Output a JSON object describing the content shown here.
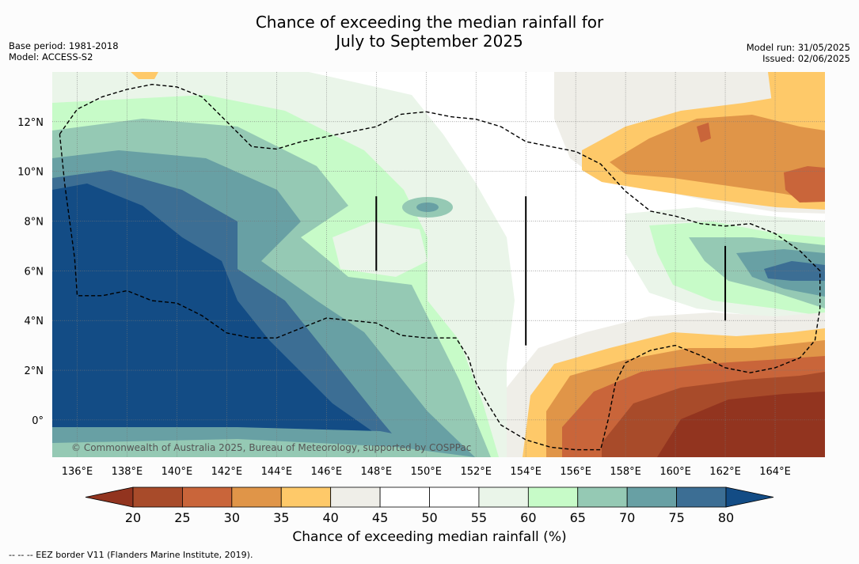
{
  "title": {
    "line1": "Chance of exceeding the median rainfall for",
    "line2": "July to September 2025"
  },
  "meta_left": {
    "base_period": "Base period: 1981-2018",
    "model": "Model: ACCESS-S2"
  },
  "meta_right": {
    "model_run": "Model run: 31/05/2025",
    "issued": "Issued: 02/06/2025"
  },
  "map": {
    "lon_range": [
      135,
      166
    ],
    "lat_range": [
      -1.5,
      14
    ],
    "x_ticks": [
      "136°E",
      "138°E",
      "140°E",
      "142°E",
      "144°E",
      "146°E",
      "148°E",
      "150°E",
      "152°E",
      "154°E",
      "156°E",
      "158°E",
      "160°E",
      "162°E",
      "164°E"
    ],
    "x_tick_values": [
      136,
      138,
      140,
      142,
      144,
      146,
      148,
      150,
      152,
      154,
      156,
      158,
      160,
      162,
      164
    ],
    "y_ticks": [
      "12°N",
      "10°N",
      "8°N",
      "6°N",
      "4°N",
      "2°N",
      "0°"
    ],
    "y_tick_values": [
      12,
      10,
      8,
      6,
      4,
      2,
      0
    ],
    "grid": true,
    "copyright": "© Commonwealth of Australia 2025, Bureau of Meteorology, supported by COSPPac",
    "eez_border": [
      [
        135.3,
        11.5
      ],
      [
        136,
        12.5
      ],
      [
        137,
        13
      ],
      [
        138,
        13.3
      ],
      [
        139,
        13.5
      ],
      [
        140,
        13.4
      ],
      [
        141,
        13
      ],
      [
        142,
        12
      ],
      [
        143,
        11
      ],
      [
        144,
        10.9
      ],
      [
        145,
        11.2
      ],
      [
        147,
        11.6
      ],
      [
        148,
        11.8
      ],
      [
        149,
        12.3
      ],
      [
        150,
        12.4
      ],
      [
        151,
        12.2
      ],
      [
        152,
        12.1
      ],
      [
        153,
        11.8
      ],
      [
        154,
        11.2
      ],
      [
        155,
        11
      ],
      [
        156,
        10.8
      ],
      [
        157,
        10.3
      ],
      [
        158,
        9.2
      ],
      [
        159,
        8.4
      ],
      [
        160,
        8.2
      ],
      [
        161,
        7.9
      ],
      [
        162,
        7.8
      ],
      [
        163,
        7.9
      ],
      [
        164,
        7.5
      ],
      [
        165,
        6.8
      ],
      [
        165.8,
        6
      ],
      [
        165.8,
        4.5
      ],
      [
        165.6,
        3.2
      ],
      [
        165,
        2.5
      ],
      [
        164,
        2.1
      ],
      [
        163,
        1.9
      ],
      [
        162,
        2.1
      ],
      [
        161,
        2.6
      ],
      [
        160,
        3
      ],
      [
        159,
        2.8
      ],
      [
        158,
        2.3
      ],
      [
        157.6,
        1.5
      ],
      [
        157.3,
        0
      ],
      [
        157,
        -1.2
      ],
      [
        156,
        -1.2
      ],
      [
        155,
        -1.1
      ],
      [
        154,
        -0.8
      ],
      [
        153,
        -0.2
      ],
      [
        152.5,
        0.6
      ],
      [
        152,
        1.5
      ],
      [
        151.7,
        2.5
      ],
      [
        151.2,
        3.3
      ],
      [
        150,
        3.3
      ],
      [
        149,
        3.4
      ],
      [
        148,
        3.9
      ],
      [
        147,
        4
      ],
      [
        146,
        4.1
      ],
      [
        145,
        3.7
      ],
      [
        144,
        3.3
      ],
      [
        143,
        3.3
      ],
      [
        142,
        3.5
      ],
      [
        141,
        4.2
      ],
      [
        140,
        4.7
      ],
      [
        139,
        4.8
      ],
      [
        138,
        5.2
      ],
      [
        137,
        5
      ],
      [
        136,
        5
      ],
      [
        135.9,
        6.5
      ],
      [
        135.7,
        8
      ],
      [
        135.5,
        9.5
      ],
      [
        135.3,
        11.5
      ]
    ],
    "vertical_lines": [
      [
        148,
        6,
        9
      ],
      [
        154,
        3,
        9
      ],
      [
        162,
        4,
        7
      ]
    ]
  },
  "colorbar": {
    "levels": [
      20,
      25,
      30,
      35,
      40,
      45,
      50,
      55,
      60,
      65,
      70,
      75,
      80
    ],
    "labels": [
      "20",
      "25",
      "30",
      "35",
      "40",
      "45",
      "50",
      "55",
      "60",
      "65",
      "70",
      "75",
      "80"
    ],
    "colors": [
      "#a84b2a",
      "#c9653a",
      "#e09548",
      "#fec969",
      "#efeee8",
      "#ffffff",
      "#ffffff",
      "#eaf5e9",
      "#c7fbc8",
      "#95c9b4",
      "#68a0a4",
      "#3c6e94",
      "#134c85"
    ],
    "under_color": "#92341f",
    "over_color": "#134c85",
    "title": "Chance of exceeding median rainfall (%)"
  },
  "footnote": "--  --  -- EEZ border V11 (Flanders Marine Institute, 2019)."
}
